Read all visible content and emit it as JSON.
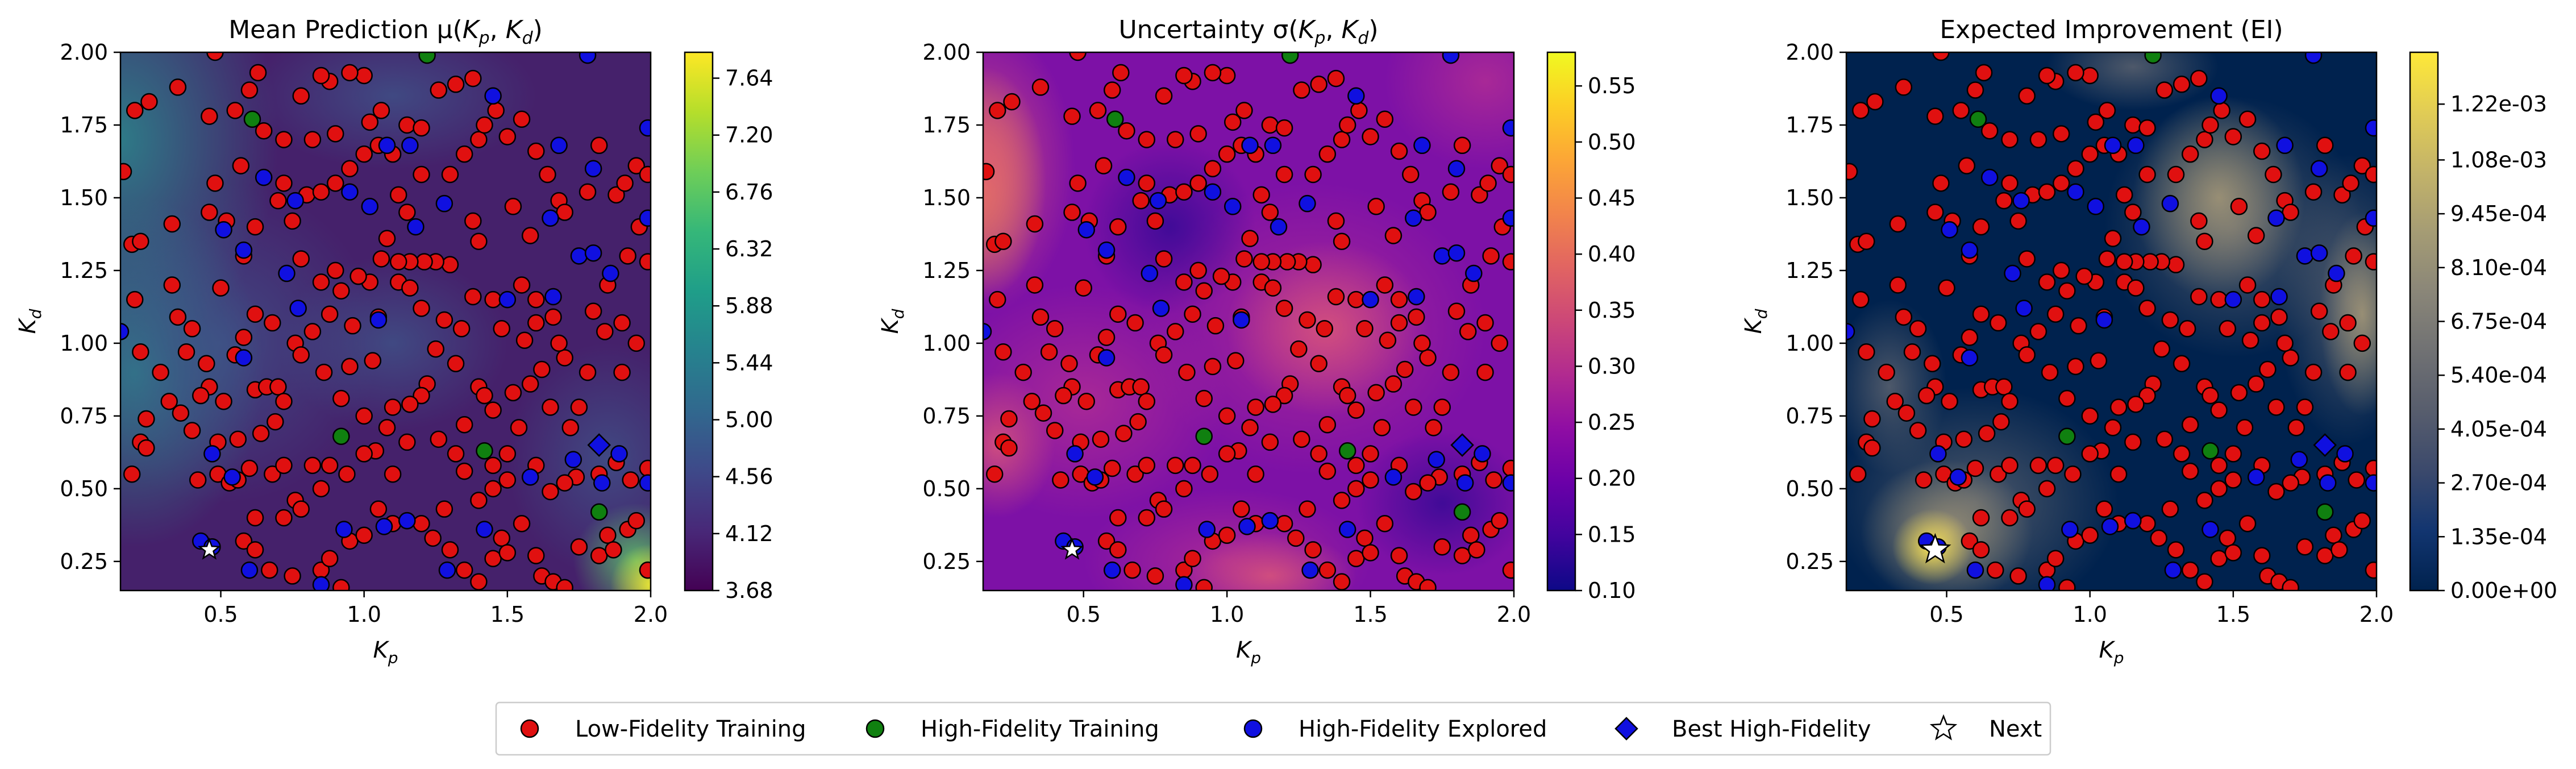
{
  "chart_data": [
    {
      "type": "heatmap",
      "id": "mu",
      "title": "Mean Prediction μ(K_p, K_d)",
      "title_parts": {
        "prefix": "Mean Prediction μ(",
        "a": "K",
        "a_sub": "p",
        "mid": ", ",
        "b": "K",
        "b_sub": "d",
        "suffix": ")"
      },
      "xlabel": {
        "base": "K",
        "sub": "p"
      },
      "ylabel": {
        "base": "K",
        "sub": "d"
      },
      "xlim": [
        0.15,
        2.0
      ],
      "ylim": [
        0.15,
        2.0
      ],
      "xticks": [
        "0.5",
        "1.0",
        "1.5",
        "2.0"
      ],
      "yticks": [
        "0.25",
        "0.50",
        "0.75",
        "1.00",
        "1.25",
        "1.50",
        "1.75",
        "2.00"
      ],
      "colormap": "viridis",
      "colorbar_range": [
        3.68,
        7.84
      ],
      "colorbar_ticks": [
        "3.68",
        "4.12",
        "4.56",
        "5.00",
        "5.44",
        "5.88",
        "6.32",
        "6.76",
        "7.20",
        "7.64"
      ]
    },
    {
      "type": "heatmap",
      "id": "sigma",
      "title": "Uncertainty σ(K_p, K_d)",
      "title_parts": {
        "prefix": "Uncertainty σ(",
        "a": "K",
        "a_sub": "p",
        "mid": ", ",
        "b": "K",
        "b_sub": "d",
        "suffix": ")"
      },
      "xlabel": {
        "base": "K",
        "sub": "p"
      },
      "ylabel": {
        "base": "K",
        "sub": "d"
      },
      "xlim": [
        0.15,
        2.0
      ],
      "ylim": [
        0.15,
        2.0
      ],
      "xticks": [
        "0.5",
        "1.0",
        "1.5",
        "2.0"
      ],
      "yticks": [
        "0.25",
        "0.50",
        "0.75",
        "1.00",
        "1.25",
        "1.50",
        "1.75",
        "2.00"
      ],
      "colormap": "plasma",
      "colorbar_range": [
        0.1,
        0.58
      ],
      "colorbar_ticks": [
        "0.10",
        "0.15",
        "0.20",
        "0.25",
        "0.30",
        "0.35",
        "0.40",
        "0.45",
        "0.50",
        "0.55"
      ]
    },
    {
      "type": "heatmap",
      "id": "ei",
      "title": "Expected Improvement (EI)",
      "title_parts": {
        "prefix": "Expected Improvement (EI)",
        "a": "",
        "a_sub": "",
        "mid": "",
        "b": "",
        "b_sub": "",
        "suffix": ""
      },
      "xlabel": {
        "base": "K",
        "sub": "p"
      },
      "ylabel": {
        "base": "K",
        "sub": "d"
      },
      "xlim": [
        0.15,
        2.0
      ],
      "ylim": [
        0.15,
        2.0
      ],
      "xticks": [
        "0.5",
        "1.0",
        "1.5",
        "2.0"
      ],
      "yticks": [
        "0.25",
        "0.50",
        "0.75",
        "1.00",
        "1.25",
        "1.50",
        "1.75",
        "2.00"
      ],
      "colormap": "cividis",
      "colorbar_range": [
        0,
        0.00135
      ],
      "colorbar_ticks": [
        "0.00e+00",
        "1.35e-04",
        "2.70e-04",
        "4.05e-04",
        "5.40e-04",
        "6.75e-04",
        "8.10e-04",
        "9.45e-04",
        "1.08e-03",
        "1.22e-03"
      ]
    }
  ],
  "points": {
    "low_fidelity": [
      [
        0.16,
        1.59
      ],
      [
        0.2,
        1.8
      ],
      [
        0.19,
        1.34
      ],
      [
        0.2,
        1.15
      ],
      [
        0.22,
        1.35
      ],
      [
        0.25,
        1.83
      ],
      [
        0.22,
        0.97
      ],
      [
        0.22,
        0.66
      ],
      [
        0.24,
        0.64
      ],
      [
        0.19,
        0.55
      ],
      [
        0.29,
        0.9
      ],
      [
        0.32,
        0.8
      ],
      [
        0.33,
        1.2
      ],
      [
        0.35,
        1.09
      ],
      [
        0.33,
        1.41
      ],
      [
        0.35,
        1.88
      ],
      [
        0.46,
        1.78
      ],
      [
        0.48,
        2.0
      ],
      [
        0.55,
        1.8
      ],
      [
        0.6,
        1.87
      ],
      [
        0.63,
        1.93
      ],
      [
        0.57,
        1.61
      ],
      [
        0.48,
        1.55
      ],
      [
        0.46,
        1.45
      ],
      [
        0.5,
        1.19
      ],
      [
        0.52,
        1.42
      ],
      [
        0.62,
        1.4
      ],
      [
        0.58,
        1.3
      ],
      [
        0.62,
        1.1
      ],
      [
        0.58,
        1.02
      ],
      [
        0.55,
        0.96
      ],
      [
        0.45,
        0.93
      ],
      [
        0.46,
        0.85
      ],
      [
        0.43,
        0.82
      ],
      [
        0.51,
        0.8
      ],
      [
        0.62,
        0.84
      ],
      [
        0.66,
        0.85
      ],
      [
        0.7,
        0.85
      ],
      [
        0.72,
        0.8
      ],
      [
        0.69,
        0.73
      ],
      [
        0.64,
        0.69
      ],
      [
        0.56,
        0.67
      ],
      [
        0.49,
        0.66
      ],
      [
        0.4,
        0.7
      ],
      [
        0.36,
        0.76
      ],
      [
        0.24,
        0.74
      ],
      [
        0.42,
        0.53
      ],
      [
        0.49,
        0.55
      ],
      [
        0.53,
        0.52
      ],
      [
        0.56,
        0.53
      ],
      [
        0.6,
        0.57
      ],
      [
        0.68,
        0.55
      ],
      [
        0.72,
        0.58
      ],
      [
        0.76,
        0.46
      ],
      [
        0.78,
        0.43
      ],
      [
        0.72,
        0.4
      ],
      [
        0.62,
        0.4
      ],
      [
        0.58,
        0.32
      ],
      [
        0.62,
        0.29
      ],
      [
        0.67,
        0.22
      ],
      [
        0.75,
        0.2
      ],
      [
        0.85,
        0.22
      ],
      [
        0.88,
        0.26
      ],
      [
        0.92,
        0.16
      ],
      [
        0.95,
        0.32
      ],
      [
        1.0,
        0.34
      ],
      [
        1.05,
        0.43
      ],
      [
        1.1,
        0.38
      ],
      [
        1.15,
        0.39
      ],
      [
        1.2,
        0.38
      ],
      [
        1.24,
        0.33
      ],
      [
        1.28,
        0.43
      ],
      [
        1.3,
        0.29
      ],
      [
        1.35,
        0.22
      ],
      [
        1.4,
        0.18
      ],
      [
        1.45,
        0.26
      ],
      [
        1.48,
        0.33
      ],
      [
        1.5,
        0.28
      ],
      [
        1.55,
        0.38
      ],
      [
        1.6,
        0.27
      ],
      [
        1.62,
        0.2
      ],
      [
        1.66,
        0.18
      ],
      [
        1.7,
        0.16
      ],
      [
        1.75,
        0.3
      ],
      [
        1.82,
        0.27
      ],
      [
        1.85,
        0.34
      ],
      [
        1.87,
        0.29
      ],
      [
        1.92,
        0.36
      ],
      [
        1.95,
        0.39
      ],
      [
        1.99,
        0.22
      ],
      [
        1.93,
        0.53
      ],
      [
        1.99,
        0.57
      ],
      [
        1.88,
        0.59
      ],
      [
        1.82,
        0.55
      ],
      [
        1.74,
        0.54
      ],
      [
        1.7,
        0.52
      ],
      [
        1.65,
        0.49
      ],
      [
        1.6,
        0.58
      ],
      [
        1.5,
        0.53
      ],
      [
        1.45,
        0.5
      ],
      [
        1.4,
        0.46
      ],
      [
        1.35,
        0.56
      ],
      [
        1.32,
        0.62
      ],
      [
        1.26,
        0.67
      ],
      [
        1.15,
        0.66
      ],
      [
        1.08,
        0.71
      ],
      [
        1.0,
        0.75
      ],
      [
        0.92,
        0.81
      ],
      [
        0.86,
        0.9
      ],
      [
        0.95,
        0.92
      ],
      [
        1.03,
        0.94
      ],
      [
        0.96,
        1.06
      ],
      [
        1.05,
        1.09
      ],
      [
        1.12,
        1.21
      ],
      [
        1.16,
        1.19
      ],
      [
        1.2,
        1.12
      ],
      [
        1.28,
        1.08
      ],
      [
        1.25,
        0.98
      ],
      [
        1.32,
        0.93
      ],
      [
        1.4,
        0.85
      ],
      [
        1.42,
        0.82
      ],
      [
        1.45,
        0.77
      ],
      [
        1.52,
        0.83
      ],
      [
        1.54,
        0.71
      ],
      [
        1.58,
        0.86
      ],
      [
        1.62,
        0.91
      ],
      [
        1.65,
        0.78
      ],
      [
        1.7,
        0.95
      ],
      [
        1.68,
        1.0
      ],
      [
        1.66,
        1.09
      ],
      [
        1.6,
        1.07
      ],
      [
        1.56,
        1.01
      ],
      [
        1.6,
        1.15
      ],
      [
        1.55,
        1.2
      ],
      [
        1.48,
        1.05
      ],
      [
        1.45,
        1.15
      ],
      [
        1.38,
        1.16
      ],
      [
        1.34,
        1.05
      ],
      [
        1.3,
        1.27
      ],
      [
        1.25,
        1.28
      ],
      [
        1.21,
        1.28
      ],
      [
        1.16,
        1.28
      ],
      [
        1.12,
        1.28
      ],
      [
        1.08,
        1.36
      ],
      [
        1.06,
        1.29
      ],
      [
        1.02,
        1.21
      ],
      [
        0.98,
        1.23
      ],
      [
        0.92,
        1.18
      ],
      [
        0.9,
        1.25
      ],
      [
        0.85,
        1.21
      ],
      [
        0.78,
        1.29
      ],
      [
        0.75,
        1.42
      ],
      [
        0.7,
        1.49
      ],
      [
        0.72,
        1.55
      ],
      [
        0.8,
        1.51
      ],
      [
        0.85,
        1.52
      ],
      [
        0.9,
        1.55
      ],
      [
        0.95,
        1.6
      ],
      [
        1.0,
        1.65
      ],
      [
        1.05,
        1.68
      ],
      [
        1.1,
        1.65
      ],
      [
        1.15,
        1.75
      ],
      [
        1.2,
        1.74
      ],
      [
        1.3,
        1.58
      ],
      [
        1.35,
        1.65
      ],
      [
        1.4,
        1.7
      ],
      [
        1.42,
        1.75
      ],
      [
        1.46,
        1.8
      ],
      [
        1.5,
        1.71
      ],
      [
        1.55,
        1.77
      ],
      [
        1.6,
        1.66
      ],
      [
        1.64,
        1.58
      ],
      [
        1.68,
        1.49
      ],
      [
        1.7,
        1.45
      ],
      [
        1.78,
        1.52
      ],
      [
        1.82,
        1.68
      ],
      [
        1.88,
        1.51
      ],
      [
        1.91,
        1.55
      ],
      [
        1.95,
        1.61
      ],
      [
        1.99,
        1.58
      ],
      [
        1.96,
        1.4
      ],
      [
        1.92,
        1.3
      ],
      [
        1.9,
        1.07
      ],
      [
        1.84,
        1.04
      ],
      [
        1.8,
        1.11
      ],
      [
        1.78,
        0.9
      ],
      [
        1.75,
        0.78
      ],
      [
        1.72,
        0.71
      ],
      [
        1.99,
        1.28
      ],
      [
        1.95,
        1.0
      ],
      [
        1.9,
        0.9
      ],
      [
        1.85,
        1.2
      ],
      [
        1.2,
        1.58
      ],
      [
        1.12,
        1.51
      ],
      [
        1.15,
        1.45
      ],
      [
        1.38,
        1.42
      ],
      [
        1.4,
        1.35
      ],
      [
        1.52,
        1.47
      ],
      [
        1.58,
        1.37
      ],
      [
        1.26,
        1.87
      ],
      [
        1.32,
        1.89
      ],
      [
        1.38,
        1.91
      ],
      [
        1.0,
        1.92
      ],
      [
        0.95,
        1.93
      ],
      [
        0.88,
        1.9
      ],
      [
        0.85,
        1.92
      ],
      [
        0.78,
        1.85
      ],
      [
        0.82,
        1.7
      ],
      [
        0.9,
        1.72
      ],
      [
        1.02,
        1.76
      ],
      [
        1.06,
        1.8
      ],
      [
        0.72,
        1.7
      ],
      [
        0.65,
        1.73
      ],
      [
        0.4,
        1.05
      ],
      [
        0.38,
        0.97
      ],
      [
        0.68,
        1.07
      ],
      [
        0.76,
        1.0
      ],
      [
        0.78,
        0.96
      ],
      [
        0.82,
        1.04
      ],
      [
        0.88,
        1.1
      ],
      [
        1.22,
        0.86
      ],
      [
        1.2,
        0.82
      ],
      [
        1.16,
        0.79
      ],
      [
        1.1,
        0.78
      ],
      [
        1.04,
        0.63
      ],
      [
        1.0,
        0.62
      ],
      [
        0.94,
        0.55
      ],
      [
        0.88,
        0.58
      ],
      [
        0.82,
        0.58
      ],
      [
        0.85,
        0.5
      ],
      [
        1.1,
        0.55
      ],
      [
        1.35,
        0.72
      ],
      [
        1.5,
        0.62
      ],
      [
        1.45,
        0.58
      ]
    ],
    "high_fidelity_training": [
      [
        1.22,
        1.99
      ],
      [
        0.61,
        1.77
      ],
      [
        0.92,
        0.68
      ],
      [
        1.42,
        0.63
      ],
      [
        1.82,
        0.42
      ]
    ],
    "high_fidelity_explored": [
      [
        0.15,
        1.04
      ],
      [
        0.51,
        1.39
      ],
      [
        0.54,
        0.54
      ],
      [
        0.47,
        0.62
      ],
      [
        0.58,
        0.95
      ],
      [
        0.43,
        0.32
      ],
      [
        0.47,
        0.3
      ],
      [
        0.6,
        0.22
      ],
      [
        0.85,
        0.17
      ],
      [
        0.93,
        0.36
      ],
      [
        1.07,
        0.37
      ],
      [
        1.15,
        0.39
      ],
      [
        1.29,
        0.22
      ],
      [
        1.42,
        0.36
      ],
      [
        1.58,
        0.54
      ],
      [
        1.73,
        0.6
      ],
      [
        1.83,
        0.52
      ],
      [
        1.89,
        0.62
      ],
      [
        1.99,
        0.52
      ],
      [
        1.99,
        1.43
      ],
      [
        1.86,
        1.24
      ],
      [
        1.75,
        1.3
      ],
      [
        1.66,
        1.16
      ],
      [
        1.68,
        1.68
      ],
      [
        1.8,
        1.31
      ],
      [
        1.65,
        1.43
      ],
      [
        1.5,
        1.15
      ],
      [
        1.28,
        1.48
      ],
      [
        1.18,
        1.4
      ],
      [
        1.02,
        1.47
      ],
      [
        0.95,
        1.52
      ],
      [
        0.76,
        1.49
      ],
      [
        0.73,
        1.24
      ],
      [
        0.77,
        1.12
      ],
      [
        0.65,
        1.57
      ],
      [
        1.05,
        1.08
      ],
      [
        1.45,
        1.85
      ],
      [
        1.78,
        1.99
      ],
      [
        1.99,
        1.74
      ],
      [
        1.8,
        1.6
      ],
      [
        0.58,
        1.32
      ],
      [
        1.16,
        1.68
      ],
      [
        1.08,
        1.68
      ]
    ],
    "best_high_fidelity": [
      [
        1.82,
        0.65
      ]
    ],
    "next": [
      [
        0.46,
        0.29
      ]
    ]
  },
  "colors": {
    "low_fidelity": "#e01010",
    "high_fidelity_training": "#108010",
    "high_fidelity_explored": "#1010e0",
    "best_high_fidelity": "#1010e0",
    "next": "#ffffff"
  },
  "legend": {
    "items": [
      {
        "key": "low_fidelity",
        "label": "Low-Fidelity Training",
        "marker": "circle",
        "color": "#e01010"
      },
      {
        "key": "high_fidelity_training",
        "label": "High-Fidelity Training",
        "marker": "circle",
        "color": "#108010"
      },
      {
        "key": "high_fidelity_explored",
        "label": "High-Fidelity Explored",
        "marker": "circle",
        "color": "#1010e0"
      },
      {
        "key": "best_high_fidelity",
        "label": "Best High-Fidelity",
        "marker": "diamond",
        "color": "#1010e0"
      },
      {
        "key": "next",
        "label": "Next",
        "marker": "star",
        "color": "#ffffff"
      }
    ]
  }
}
